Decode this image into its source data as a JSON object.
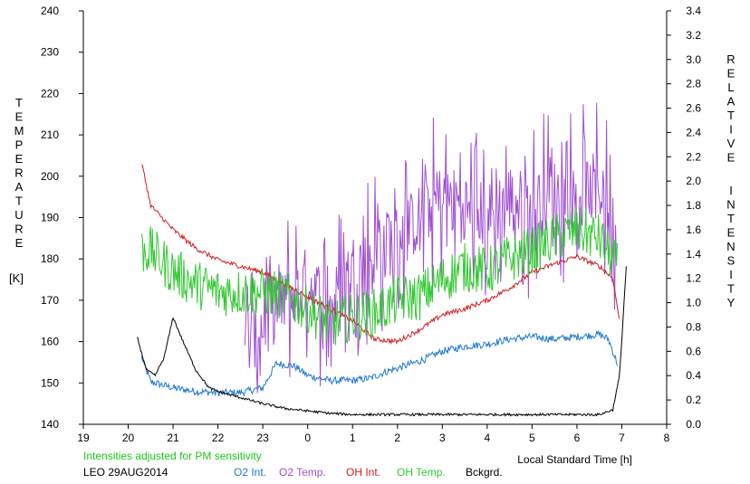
{
  "chart_data": {
    "type": "line",
    "xlabel": "Local Standard Time [h]",
    "x_ticks": [
      "19",
      "20",
      "21",
      "22",
      "23",
      "0",
      "1",
      "2",
      "3",
      "4",
      "5",
      "6",
      "7",
      "8"
    ],
    "y_left": {
      "label_letters": [
        "T",
        "E",
        "M",
        "P",
        "E",
        "R",
        "A",
        "T",
        "U",
        "R",
        "E"
      ],
      "unit": "[K]",
      "range": [
        140,
        240
      ],
      "ticks": [
        "140",
        "150",
        "160",
        "170",
        "180",
        "190",
        "200",
        "210",
        "220",
        "230",
        "240"
      ]
    },
    "y_right": {
      "label_letters_1": [
        "R",
        "E",
        "L",
        "A",
        "T",
        "I",
        "V",
        "E"
      ],
      "label_letters_2": [
        "I",
        "N",
        "T",
        "E",
        "N",
        "S",
        "I",
        "T",
        "Y"
      ],
      "range": [
        0,
        3.4
      ],
      "ticks": [
        "0.0",
        "0.2",
        "0.4",
        "0.6",
        "0.8",
        "1.0",
        "1.2",
        "1.4",
        "1.6",
        "1.8",
        "2.0",
        "2.2",
        "2.4",
        "2.6",
        "2.8",
        "3.0",
        "3.2",
        "3.4"
      ]
    },
    "note": "Intensities adjusted for PM sensitivity",
    "station": "LEO 29AUG2014",
    "series": [
      {
        "name": "O2 Int.",
        "color": "#1e78d2",
        "axis": "right",
        "noise": 0.03,
        "points": [
          [
            20.3,
            0.55
          ],
          [
            20.5,
            0.35
          ],
          [
            21,
            0.3
          ],
          [
            21.5,
            0.27
          ],
          [
            22,
            0.26
          ],
          [
            22.5,
            0.26
          ],
          [
            23,
            0.3
          ],
          [
            23.3,
            0.5
          ],
          [
            23.7,
            0.48
          ],
          [
            24,
            0.4
          ],
          [
            24.5,
            0.36
          ],
          [
            25,
            0.36
          ],
          [
            25.4,
            0.38
          ],
          [
            25.8,
            0.44
          ],
          [
            26,
            0.46
          ],
          [
            26.5,
            0.52
          ],
          [
            27,
            0.6
          ],
          [
            27.5,
            0.64
          ],
          [
            28,
            0.66
          ],
          [
            28.5,
            0.7
          ],
          [
            29,
            0.72
          ],
          [
            29.5,
            0.7
          ],
          [
            30,
            0.72
          ],
          [
            30.5,
            0.74
          ],
          [
            30.7,
            0.7
          ],
          [
            30.9,
            0.5
          ]
        ]
      },
      {
        "name": "O2 Temp.",
        "color": "#a050d2",
        "axis": "left",
        "noise": 14,
        "points": [
          [
            22.6,
            158
          ],
          [
            23,
            165
          ],
          [
            23.5,
            170
          ],
          [
            24,
            175
          ],
          [
            24.5,
            168
          ],
          [
            25,
            178
          ],
          [
            25.5,
            182
          ],
          [
            26,
            185
          ],
          [
            26.5,
            190
          ],
          [
            27,
            195
          ],
          [
            27.5,
            193
          ],
          [
            28,
            190
          ],
          [
            28.5,
            195
          ],
          [
            29,
            192
          ],
          [
            29.5,
            196
          ],
          [
            30,
            195
          ],
          [
            30.5,
            198
          ],
          [
            30.9,
            185
          ]
        ]
      },
      {
        "name": "OH Int.",
        "color": "#d21e1e",
        "axis": "right",
        "noise": 0.02,
        "points": [
          [
            20.3,
            2.15
          ],
          [
            20.5,
            1.8
          ],
          [
            21,
            1.6
          ],
          [
            21.5,
            1.45
          ],
          [
            22,
            1.35
          ],
          [
            22.5,
            1.3
          ],
          [
            23,
            1.25
          ],
          [
            23.5,
            1.15
          ],
          [
            24,
            1.05
          ],
          [
            24.5,
            0.95
          ],
          [
            25,
            0.85
          ],
          [
            25.5,
            0.7
          ],
          [
            26,
            0.68
          ],
          [
            26.5,
            0.78
          ],
          [
            27,
            0.9
          ],
          [
            27.5,
            0.95
          ],
          [
            28,
            1.02
          ],
          [
            28.5,
            1.12
          ],
          [
            29,
            1.25
          ],
          [
            29.5,
            1.32
          ],
          [
            30,
            1.38
          ],
          [
            30.5,
            1.3
          ],
          [
            30.8,
            1.2
          ],
          [
            30.95,
            0.85
          ]
        ]
      },
      {
        "name": "OH Temp.",
        "color": "#32c832",
        "axis": "left",
        "noise": 6,
        "points": [
          [
            20.3,
            182
          ],
          [
            20.5,
            182
          ],
          [
            21,
            177
          ],
          [
            21.5,
            174
          ],
          [
            22,
            172
          ],
          [
            22.5,
            172
          ],
          [
            23,
            172
          ],
          [
            23.5,
            171
          ],
          [
            24,
            168
          ],
          [
            24.5,
            164
          ],
          [
            25,
            166
          ],
          [
            25.5,
            167
          ],
          [
            26,
            170
          ],
          [
            26.5,
            171
          ],
          [
            27,
            175
          ],
          [
            27.5,
            178
          ],
          [
            28,
            177
          ],
          [
            28.5,
            180
          ],
          [
            29,
            182
          ],
          [
            29.5,
            185
          ],
          [
            30,
            187
          ],
          [
            30.5,
            185
          ],
          [
            30.9,
            178
          ]
        ]
      },
      {
        "name": "Bckgrd.",
        "color": "#000000",
        "axis": "right",
        "noise": 0.01,
        "points": [
          [
            20.2,
            0.72
          ],
          [
            20.4,
            0.45
          ],
          [
            20.6,
            0.4
          ],
          [
            20.8,
            0.55
          ],
          [
            21,
            0.88
          ],
          [
            21.2,
            0.7
          ],
          [
            21.5,
            0.45
          ],
          [
            21.8,
            0.3
          ],
          [
            22,
            0.27
          ],
          [
            22.5,
            0.22
          ],
          [
            23,
            0.17
          ],
          [
            23.5,
            0.13
          ],
          [
            24,
            0.11
          ],
          [
            24.5,
            0.09
          ],
          [
            25,
            0.08
          ],
          [
            26,
            0.08
          ],
          [
            27,
            0.08
          ],
          [
            28,
            0.08
          ],
          [
            29,
            0.08
          ],
          [
            30,
            0.08
          ],
          [
            30.5,
            0.08
          ],
          [
            30.8,
            0.12
          ],
          [
            30.95,
            0.4
          ],
          [
            31.1,
            1.3
          ]
        ]
      }
    ]
  }
}
